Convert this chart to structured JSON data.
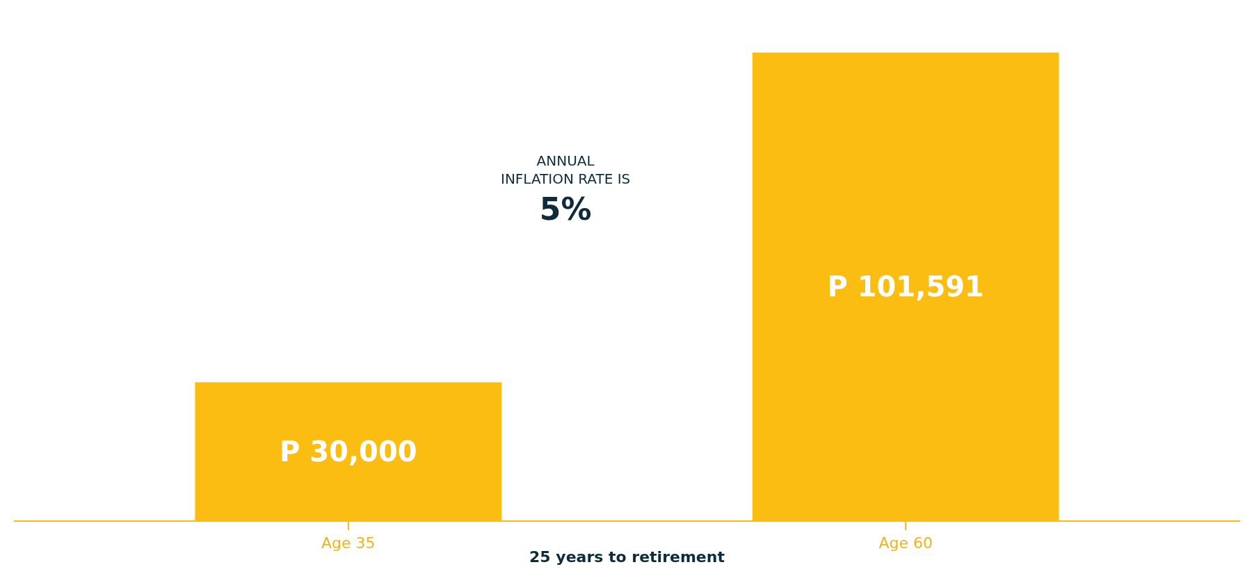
{
  "chart_data": {
    "type": "bar",
    "categories": [
      "Age 35",
      "Age 60"
    ],
    "values": [
      30000,
      101591
    ],
    "value_labels": [
      "P 30,000",
      "P 101,591"
    ],
    "color": "#fbbd12",
    "xlabel": "25 years to retirement",
    "annotations": [
      "ANNUAL\nINFLATION RATE IS\n5%"
    ],
    "tick_labels": "x"
  }
}
